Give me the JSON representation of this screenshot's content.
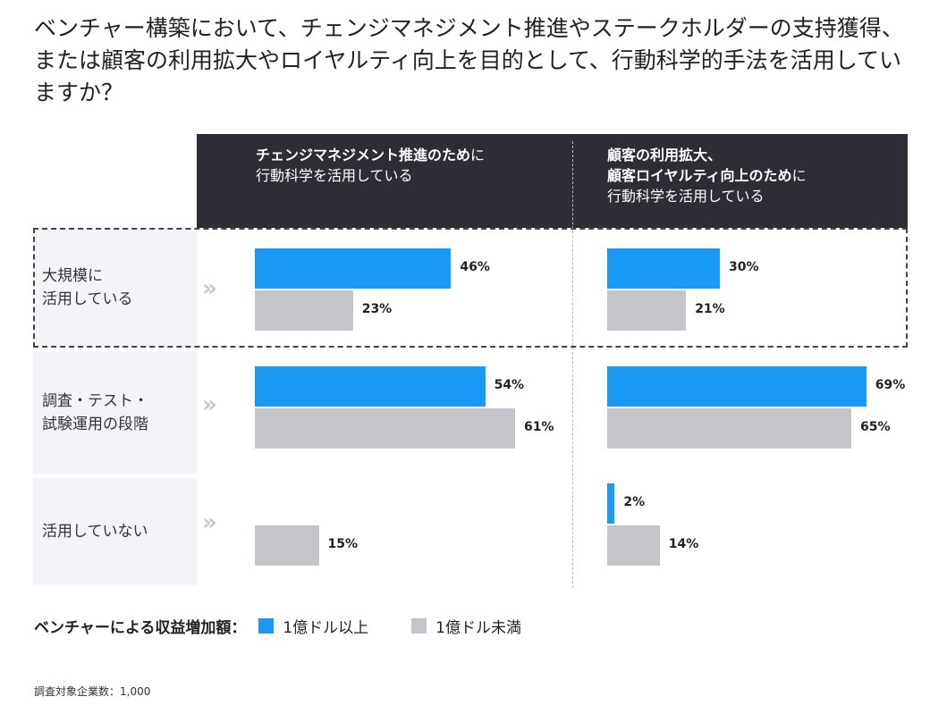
{
  "chart_data": {
    "type": "bar",
    "title": "ベンチャー構築において、チェンジマネジメント推進やステークホルダーの支持獲得、または顧客の利用拡大やロイヤルティ向上を目的として、行動科学的手法を活用していますか？",
    "panels": [
      {
        "title_bold": "チェンジマネジメント推進のため",
        "title_rest": "に",
        "title_line2": "行動科学を活用している"
      },
      {
        "title_bold": "顧客の利用拡大、",
        "title_bold2": "顧客ロイヤルティ向上のため",
        "title_rest": "に",
        "title_line2": "行動科学を活用している"
      }
    ],
    "categories": [
      {
        "line1": "大規模に",
        "line2": "活用している"
      },
      {
        "line1": "調査・テスト・",
        "line2": "試験運用の段階"
      },
      {
        "line1": "活用していない",
        "line2": ""
      }
    ],
    "series": [
      {
        "name": "1億ドル以上",
        "color": "#1a9af5",
        "values": [
          [
            46,
            54,
            0
          ],
          [
            30,
            69,
            2
          ]
        ]
      },
      {
        "name": "1億ドル未満",
        "color": "#c4c4cb",
        "values": [
          [
            23,
            61,
            15
          ],
          [
            21,
            65,
            14
          ]
        ]
      }
    ],
    "legend_title": "ベンチャーによる収益増加額：",
    "legend_position": "bottom-left",
    "unit": "%"
  },
  "footnote": "調査対象企業数：1,000"
}
